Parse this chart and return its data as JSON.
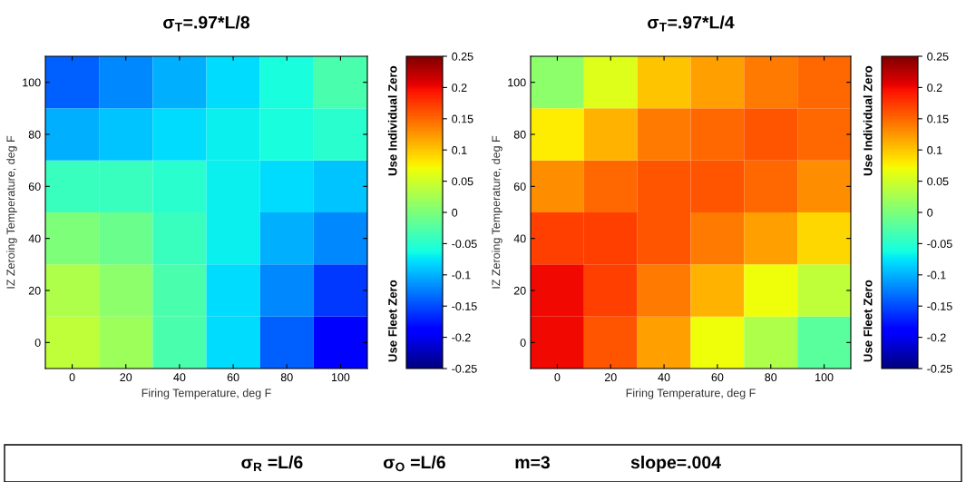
{
  "chart_data": [
    {
      "type": "heatmap",
      "title": "σ$_{T}$=.97*L/8",
      "xlabel": "Firing Temperature, deg F",
      "ylabel": "IZ Zeroing Temperature, deg F",
      "x": [
        0,
        20,
        40,
        60,
        80,
        100
      ],
      "y": [
        100,
        80,
        60,
        40,
        20,
        0
      ],
      "cells": [
        [
          -0.14,
          -0.12,
          -0.1,
          -0.08,
          -0.06,
          -0.03
        ],
        [
          -0.1,
          -0.09,
          -0.08,
          -0.07,
          -0.06,
          -0.05
        ],
        [
          -0.04,
          -0.04,
          -0.05,
          -0.07,
          -0.08,
          -0.09
        ],
        [
          0.0,
          -0.01,
          -0.04,
          -0.07,
          -0.1,
          -0.12
        ],
        [
          0.03,
          0.01,
          -0.03,
          -0.08,
          -0.12,
          -0.16
        ],
        [
          0.04,
          0.02,
          -0.03,
          -0.08,
          -0.14,
          -0.19
        ]
      ],
      "xlim": [
        -10,
        110
      ],
      "ylim": [
        -10,
        110
      ],
      "xticks": [
        0,
        20,
        40,
        60,
        80,
        100
      ],
      "yticks": [
        0,
        20,
        40,
        60,
        80,
        100
      ],
      "clim": [
        -0.25,
        0.25
      ],
      "cticks": [
        -0.25,
        -0.2,
        -0.15,
        -0.1,
        -0.05,
        0,
        0.05,
        0.1,
        0.15,
        0.2,
        0.25
      ],
      "annotations": [
        "Use Individual Zero",
        "Use Fleet Zero"
      ]
    },
    {
      "type": "heatmap",
      "title": "σ$_{T}$=.97*L/4",
      "xlabel": "Firing Temperature, deg F",
      "ylabel": "IZ Zeroing Temperature, deg F",
      "x": [
        0,
        20,
        40,
        60,
        80,
        100
      ],
      "y": [
        100,
        80,
        60,
        40,
        20,
        0
      ],
      "cells": [
        [
          0.01,
          0.06,
          0.1,
          0.12,
          0.14,
          0.15
        ],
        [
          0.08,
          0.11,
          0.14,
          0.15,
          0.16,
          0.15
        ],
        [
          0.13,
          0.15,
          0.16,
          0.16,
          0.15,
          0.13
        ],
        [
          0.17,
          0.17,
          0.16,
          0.14,
          0.12,
          0.09
        ],
        [
          0.2,
          0.17,
          0.14,
          0.11,
          0.07,
          0.04
        ],
        [
          0.2,
          0.16,
          0.12,
          0.07,
          0.03,
          -0.02
        ]
      ],
      "xlim": [
        -10,
        110
      ],
      "ylim": [
        -10,
        110
      ],
      "xticks": [
        0,
        20,
        40,
        60,
        80,
        100
      ],
      "yticks": [
        0,
        20,
        40,
        60,
        80,
        100
      ],
      "clim": [
        -0.25,
        0.25
      ],
      "cticks": [
        -0.25,
        -0.2,
        -0.15,
        -0.1,
        -0.05,
        0,
        0.05,
        0.1,
        0.15,
        0.2,
        0.25
      ],
      "annotations": [
        "Use Individual Zero",
        "Use Fleet Zero",
        "σ$_{R}$ =L/6",
        "σ$_{O}$ =L/6",
        "m=3",
        "slope=.004"
      ]
    }
  ]
}
